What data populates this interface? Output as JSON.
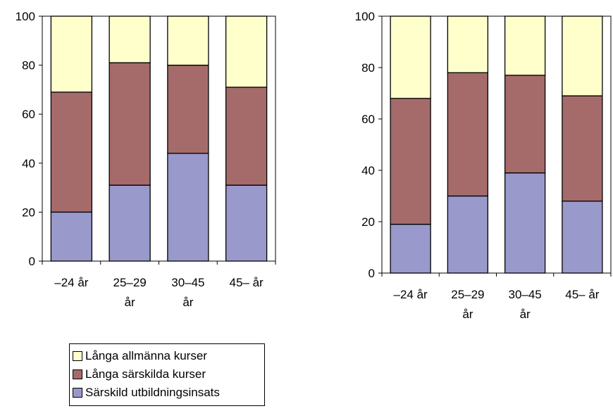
{
  "chart_data": [
    {
      "type": "bar",
      "stacked": true,
      "categories": [
        [
          "–24 år"
        ],
        [
          "25–29",
          "år"
        ],
        [
          "30–45",
          "år"
        ],
        [
          "45– år"
        ]
      ],
      "series": [
        {
          "name": "Särskild utbildningsinsats",
          "color": "#9999cc",
          "values": [
            20,
            31,
            44,
            31
          ]
        },
        {
          "name": "Långa särskilda kurser",
          "color": "#a56b6b",
          "values": [
            49,
            50,
            36,
            40
          ]
        },
        {
          "name": "Långa allmänna kurser",
          "color": "#ffffcc",
          "values": [
            31,
            19,
            20,
            29
          ]
        }
      ],
      "ylim": [
        0,
        100
      ],
      "yticks": [
        "0",
        "20",
        "40",
        "60",
        "80",
        "100"
      ],
      "grid": false
    },
    {
      "type": "bar",
      "stacked": true,
      "categories": [
        [
          "–24 år"
        ],
        [
          "25–29",
          "år"
        ],
        [
          "30–45",
          "år"
        ],
        [
          "45– år"
        ]
      ],
      "series": [
        {
          "name": "Särskild utbildningsinsats",
          "color": "#9999cc",
          "values": [
            19,
            30,
            39,
            28
          ]
        },
        {
          "name": "Långa särskilda kurser",
          "color": "#a56b6b",
          "values": [
            49,
            48,
            38,
            41
          ]
        },
        {
          "name": "Långa allmänna kurser",
          "color": "#ffffcc",
          "values": [
            32,
            22,
            23,
            31
          ]
        }
      ],
      "ylim": [
        0,
        100
      ],
      "yticks": [
        "0",
        "20",
        "40",
        "60",
        "80",
        "100"
      ],
      "grid": false
    }
  ],
  "legend": {
    "position": "bottom-left",
    "items": [
      {
        "label": "Långa allmänna kurser",
        "color": "#ffffcc"
      },
      {
        "label": "Långa särskilda kurser",
        "color": "#a56b6b"
      },
      {
        "label": "Särskild utbildningsinsats",
        "color": "#9999cc"
      }
    ]
  }
}
